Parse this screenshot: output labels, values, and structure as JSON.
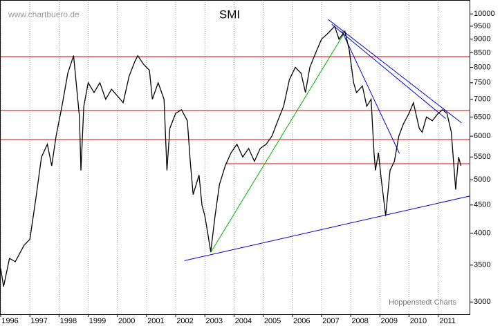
{
  "chart_data": {
    "type": "line",
    "title": "SMI",
    "watermark": "www.chartbuero.de",
    "source": "Hoppenstedt Charts",
    "log_y": true,
    "grid": true,
    "color": "#000000",
    "xlim": [
      1996,
      2012.1
    ],
    "ylim": [
      2850,
      10600
    ],
    "xticks": [
      1996,
      1997,
      1998,
      1999,
      2000,
      2001,
      2002,
      2003,
      2004,
      2005,
      2006,
      2007,
      2008,
      2009,
      2010,
      2011
    ],
    "yticks": [
      3000,
      3500,
      4000,
      4500,
      5000,
      5500,
      6000,
      6500,
      7000,
      7500,
      8000,
      8500,
      9000,
      9500,
      10000
    ],
    "x": [
      1996.0,
      1996.1,
      1996.3,
      1996.5,
      1996.8,
      1997.0,
      1997.2,
      1997.4,
      1997.6,
      1997.75,
      1997.9,
      1998.1,
      1998.3,
      1998.5,
      1998.7,
      1998.75,
      1998.85,
      1999.0,
      1999.2,
      1999.4,
      1999.6,
      1999.8,
      2000.0,
      2000.2,
      2000.4,
      2000.6,
      2000.7,
      2000.9,
      2001.1,
      2001.2,
      2001.4,
      2001.6,
      2001.7,
      2001.8,
      2002.0,
      2002.2,
      2002.4,
      2002.5,
      2002.6,
      2002.8,
      2002.9,
      2003.0,
      2003.1,
      2003.2,
      2003.35,
      2003.5,
      2003.7,
      2003.9,
      2004.1,
      2004.3,
      2004.5,
      2004.7,
      2004.9,
      2005.1,
      2005.3,
      2005.5,
      2005.7,
      2005.9,
      2006.1,
      2006.3,
      2006.45,
      2006.6,
      2006.8,
      2007.0,
      2007.2,
      2007.45,
      2007.6,
      2007.8,
      2007.95,
      2008.1,
      2008.2,
      2008.4,
      2008.55,
      2008.7,
      2008.8,
      2008.85,
      2008.95,
      2009.05,
      2009.2,
      2009.35,
      2009.5,
      2009.65,
      2009.8,
      2010.0,
      2010.15,
      2010.35,
      2010.45,
      2010.6,
      2010.8,
      2011.0,
      2011.15,
      2011.3,
      2011.45,
      2011.55,
      2011.6,
      2011.7,
      2011.78
    ],
    "values": [
      3450,
      3200,
      3600,
      3550,
      3800,
      3900,
      4600,
      5500,
      5800,
      5300,
      6000,
      6800,
      7800,
      8400,
      6500,
      5200,
      6800,
      7500,
      7200,
      7500,
      7000,
      7300,
      7100,
      6900,
      7700,
      8200,
      8400,
      8100,
      7900,
      7000,
      7500,
      7000,
      5200,
      6200,
      6600,
      6700,
      6400,
      5400,
      4700,
      5100,
      4500,
      4300,
      4000,
      3700,
      4300,
      4900,
      5300,
      5600,
      5800,
      5500,
      5700,
      5400,
      5700,
      5800,
      6000,
      6400,
      6800,
      7600,
      8000,
      7800,
      7200,
      8000,
      8500,
      9000,
      9200,
      9500,
      9000,
      9300,
      8600,
      7500,
      7200,
      7400,
      6800,
      7000,
      5600,
      5200,
      5600,
      5000,
      4300,
      5200,
      5400,
      6000,
      6300,
      6600,
      6900,
      6200,
      6100,
      6500,
      6400,
      6600,
      6700,
      6600,
      6100,
      5200,
      4800,
      5500,
      5300
    ],
    "lines": [
      {
        "color": "#e00000",
        "x": [
          1996,
          2012.1
        ],
        "values": [
          8365,
          8365
        ]
      },
      {
        "color": "#e00000",
        "x": [
          1996,
          2012.1
        ],
        "values": [
          6680,
          6680
        ]
      },
      {
        "color": "#e00000",
        "x": [
          1996,
          2012.1
        ],
        "values": [
          5916,
          5916
        ]
      },
      {
        "color": "#e00000",
        "x": [
          2003.7,
          2012.1
        ],
        "values": [
          5347,
          5347
        ]
      },
      {
        "color": "#0000cc",
        "x": [
          2002.3,
          2012.09
        ],
        "values": [
          3566,
          4673
        ]
      },
      {
        "color": "#00b000",
        "x": [
          2003.2,
          2007.75
        ],
        "values": [
          3690,
          9173
        ]
      },
      {
        "color": "#0000cc",
        "x": [
          2007.23,
          2011.8
        ],
        "values": [
          9772,
          6343
        ]
      },
      {
        "color": "#0000cc",
        "x": [
          2007.35,
          2011.26
        ],
        "values": [
          9577,
          6457
        ]
      },
      {
        "color": "#0000cc",
        "x": [
          2007.7,
          2009.67
        ],
        "values": [
          9305,
          5585
        ]
      }
    ]
  }
}
